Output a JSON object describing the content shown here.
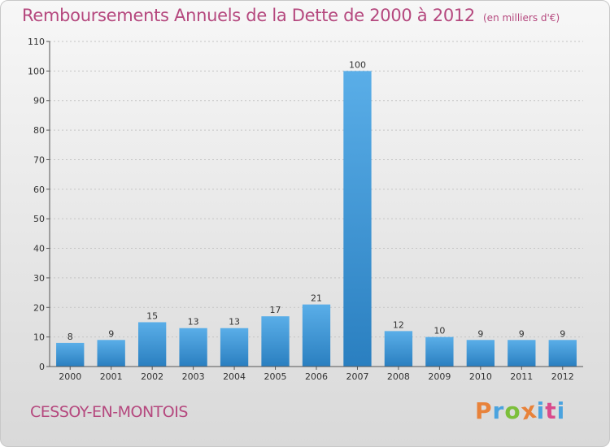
{
  "header": {
    "title": "Remboursements Annuels de la Dette de 2000 à 2012",
    "unit_note": "(en milliers d'€)"
  },
  "footer": {
    "city": "CESSOY-EN-MONTOIS",
    "brand": "Proxiti",
    "brand_colors": [
      "#e8823a",
      "#4aa3df",
      "#7cbf3a",
      "#e8823a",
      "#4aa3df",
      "#d94a8c",
      "#4aa3df"
    ]
  },
  "chart_data": {
    "type": "bar",
    "categories": [
      "2000",
      "2001",
      "2002",
      "2003",
      "2004",
      "2005",
      "2006",
      "2007",
      "2008",
      "2009",
      "2010",
      "2011",
      "2012"
    ],
    "values": [
      8,
      9,
      15,
      13,
      13,
      17,
      21,
      100,
      12,
      10,
      9,
      9,
      9
    ],
    "ylim": [
      0,
      110
    ],
    "yticks": [
      0,
      10,
      20,
      30,
      40,
      50,
      60,
      70,
      80,
      90,
      100,
      110
    ],
    "grid": true,
    "bar_color_top": "#5aaee8",
    "bar_color_bottom": "#2a7fc0"
  }
}
